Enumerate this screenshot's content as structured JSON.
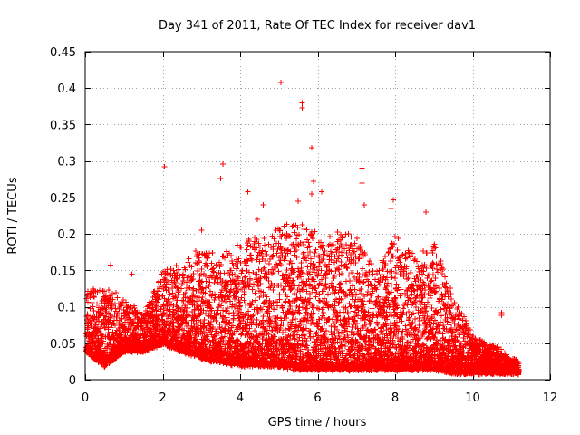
{
  "chart_data": {
    "type": "scatter",
    "title": "Day 341 of 2011, Rate Of TEC Index for receiver dav1",
    "xlabel": "GPS time / hours",
    "ylabel": "ROTI / TECUs",
    "xlim": [
      0,
      12
    ],
    "ylim": [
      0,
      0.45
    ],
    "grid": true,
    "marker": "+",
    "series_color": "#ff0000",
    "x_ticks": [
      0,
      2,
      4,
      6,
      8,
      10,
      12
    ],
    "x_tick_labels": [
      "0",
      "2",
      "4",
      "6",
      "8",
      "10",
      "12"
    ],
    "y_ticks": [
      0,
      0.05,
      0.1,
      0.15,
      0.2,
      0.25,
      0.3,
      0.35,
      0.4,
      0.45
    ],
    "y_tick_labels": [
      "0",
      "0.05",
      "0.1",
      "0.15",
      "0.2",
      "0.25",
      "0.3",
      "0.35",
      "0.4",
      "0.45"
    ],
    "outliers": [
      {
        "x": 2.05,
        "y": 0.292
      },
      {
        "x": 3.55,
        "y": 0.296
      },
      {
        "x": 3.5,
        "y": 0.276
      },
      {
        "x": 4.2,
        "y": 0.258
      },
      {
        "x": 5.05,
        "y": 0.408
      },
      {
        "x": 5.6,
        "y": 0.38
      },
      {
        "x": 5.6,
        "y": 0.373
      },
      {
        "x": 5.85,
        "y": 0.318
      },
      {
        "x": 5.9,
        "y": 0.272
      },
      {
        "x": 6.1,
        "y": 0.258
      },
      {
        "x": 5.85,
        "y": 0.255
      },
      {
        "x": 7.15,
        "y": 0.29
      },
      {
        "x": 7.15,
        "y": 0.27
      },
      {
        "x": 7.2,
        "y": 0.24
      },
      {
        "x": 7.95,
        "y": 0.247
      },
      {
        "x": 7.9,
        "y": 0.235
      },
      {
        "x": 8.8,
        "y": 0.23
      },
      {
        "x": 5.5,
        "y": 0.245
      },
      {
        "x": 4.6,
        "y": 0.24
      },
      {
        "x": 4.45,
        "y": 0.22
      },
      {
        "x": 3.0,
        "y": 0.205
      },
      {
        "x": 10.75,
        "y": 0.092
      },
      {
        "x": 10.75,
        "y": 0.088
      },
      {
        "x": 0.65,
        "y": 0.157
      },
      {
        "x": 1.2,
        "y": 0.145
      }
    ],
    "envelope": [
      {
        "x": 0.0,
        "baseline": 0.04,
        "peak": 0.12
      },
      {
        "x": 0.5,
        "baseline": 0.02,
        "peak": 0.13
      },
      {
        "x": 1.0,
        "baseline": 0.04,
        "peak": 0.11
      },
      {
        "x": 1.5,
        "baseline": 0.04,
        "peak": 0.09
      },
      {
        "x": 2.0,
        "baseline": 0.05,
        "peak": 0.15
      },
      {
        "x": 2.5,
        "baseline": 0.04,
        "peak": 0.16
      },
      {
        "x": 3.0,
        "baseline": 0.03,
        "peak": 0.18
      },
      {
        "x": 3.5,
        "baseline": 0.025,
        "peak": 0.17
      },
      {
        "x": 4.0,
        "baseline": 0.02,
        "peak": 0.19
      },
      {
        "x": 4.5,
        "baseline": 0.02,
        "peak": 0.2
      },
      {
        "x": 5.0,
        "baseline": 0.02,
        "peak": 0.21
      },
      {
        "x": 5.5,
        "baseline": 0.015,
        "peak": 0.22
      },
      {
        "x": 6.0,
        "baseline": 0.015,
        "peak": 0.2
      },
      {
        "x": 6.5,
        "baseline": 0.015,
        "peak": 0.2
      },
      {
        "x": 7.0,
        "baseline": 0.015,
        "peak": 0.2
      },
      {
        "x": 7.5,
        "baseline": 0.015,
        "peak": 0.15
      },
      {
        "x": 8.0,
        "baseline": 0.015,
        "peak": 0.2
      },
      {
        "x": 8.5,
        "baseline": 0.015,
        "peak": 0.17
      },
      {
        "x": 9.0,
        "baseline": 0.015,
        "peak": 0.19
      },
      {
        "x": 9.5,
        "baseline": 0.01,
        "peak": 0.12
      },
      {
        "x": 10.0,
        "baseline": 0.01,
        "peak": 0.06
      },
      {
        "x": 10.5,
        "baseline": 0.01,
        "peak": 0.05
      },
      {
        "x": 11.0,
        "baseline": 0.01,
        "peak": 0.03
      },
      {
        "x": 11.2,
        "baseline": 0.01,
        "peak": 0.025
      }
    ],
    "sample_step_hours": 0.006,
    "x_max_data": 11.2
  }
}
